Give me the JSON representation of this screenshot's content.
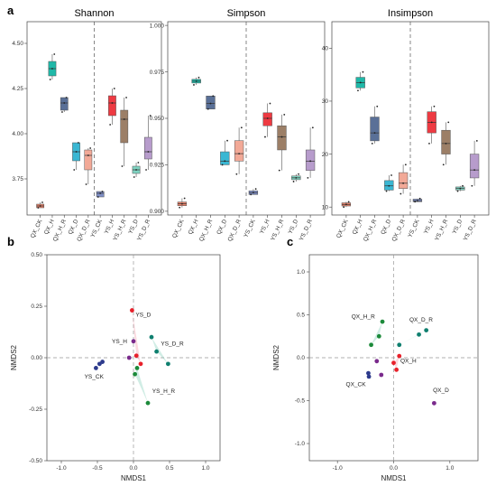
{
  "panel_labels": {
    "a": "a",
    "b": "b",
    "c": "c"
  },
  "chart_data": [
    {
      "type": "box",
      "title": "Shannon",
      "ylim": [
        3.55,
        4.62
      ],
      "yticks": [
        "3.75",
        "4.00",
        "4.25",
        "4.50"
      ],
      "categories": [
        "QX_CK",
        "QX_H",
        "QX_H_R",
        "QX_D",
        "QX_D_R",
        "YS_CK",
        "YS_H",
        "YS_H_R",
        "YS_D",
        "YS_D_R"
      ],
      "colors": [
        "#e8836b",
        "#1fb8a8",
        "#5a7097",
        "#3ab7d3",
        "#f2a997",
        "#7f8fc6",
        "#ee3a42",
        "#9c7f67",
        "#7fd3c1",
        "#b79ccc"
      ],
      "boxes": [
        {
          "q1": 3.59,
          "median": 3.6,
          "q3": 3.61,
          "min": 3.59,
          "max": 3.62
        },
        {
          "q1": 4.32,
          "median": 4.36,
          "q3": 4.4,
          "min": 4.3,
          "max": 4.44
        },
        {
          "q1": 4.13,
          "median": 4.17,
          "q3": 4.2,
          "min": 4.12,
          "max": 4.2
        },
        {
          "q1": 3.85,
          "median": 3.9,
          "q3": 3.95,
          "min": 3.8,
          "max": 3.95
        },
        {
          "q1": 3.8,
          "median": 3.88,
          "q3": 3.91,
          "min": 3.72,
          "max": 3.92
        },
        {
          "q1": 3.65,
          "median": 3.67,
          "q3": 3.68,
          "min": 3.65,
          "max": 3.68
        },
        {
          "q1": 4.1,
          "median": 4.17,
          "q3": 4.21,
          "min": 4.05,
          "max": 4.25
        },
        {
          "q1": 3.95,
          "median": 4.08,
          "q3": 4.13,
          "min": 3.82,
          "max": 4.2
        },
        {
          "q1": 3.78,
          "median": 3.8,
          "q3": 3.82,
          "min": 3.76,
          "max": 3.84
        },
        {
          "q1": 3.86,
          "median": 3.9,
          "q3": 3.98,
          "min": 3.8,
          "max": 4.1
        }
      ]
    },
    {
      "type": "box",
      "title": "Simpson",
      "ylim": [
        0.898,
        1.002
      ],
      "yticks": [
        "0.900",
        "0.925",
        "0.950",
        "0.975",
        "1.000"
      ],
      "categories": [
        "QX_CK",
        "QX_H",
        "QX_H_R",
        "QX_D",
        "QX_D_R",
        "YS_CK",
        "YS_H",
        "YS_H_R",
        "YS_D",
        "YS_D_R"
      ],
      "colors": [
        "#e8836b",
        "#1fb8a8",
        "#5a7097",
        "#3ab7d3",
        "#f2a997",
        "#7f8fc6",
        "#ee3a42",
        "#9c7f67",
        "#7fd3c1",
        "#b79ccc"
      ],
      "boxes": [
        {
          "q1": 0.903,
          "median": 0.904,
          "q3": 0.905,
          "min": 0.902,
          "max": 0.907
        },
        {
          "q1": 0.969,
          "median": 0.97,
          "q3": 0.971,
          "min": 0.968,
          "max": 0.972
        },
        {
          "q1": 0.955,
          "median": 0.958,
          "q3": 0.962,
          "min": 0.955,
          "max": 0.962
        },
        {
          "q1": 0.925,
          "median": 0.927,
          "q3": 0.932,
          "min": 0.925,
          "max": 0.938
        },
        {
          "q1": 0.927,
          "median": 0.931,
          "q3": 0.938,
          "min": 0.92,
          "max": 0.945
        },
        {
          "q1": 0.909,
          "median": 0.91,
          "q3": 0.911,
          "min": 0.909,
          "max": 0.912
        },
        {
          "q1": 0.946,
          "median": 0.95,
          "q3": 0.953,
          "min": 0.94,
          "max": 0.958
        },
        {
          "q1": 0.933,
          "median": 0.94,
          "q3": 0.946,
          "min": 0.922,
          "max": 0.952
        },
        {
          "q1": 0.917,
          "median": 0.918,
          "q3": 0.919,
          "min": 0.916,
          "max": 0.92
        },
        {
          "q1": 0.922,
          "median": 0.927,
          "q3": 0.933,
          "min": 0.918,
          "max": 0.945
        }
      ]
    },
    {
      "type": "box",
      "title": "Insimpson",
      "ylim": [
        8.5,
        45
      ],
      "yticks": [
        "10",
        "20",
        "30",
        "40"
      ],
      "categories": [
        "QX_CK",
        "QX_H",
        "QX_H_R",
        "QX_D",
        "QX_D_R",
        "YS_CK",
        "YS_H",
        "YS_H_R",
        "YS_D",
        "YS_D_R"
      ],
      "colors": [
        "#e8836b",
        "#1fb8a8",
        "#5a7097",
        "#3ab7d3",
        "#f2a997",
        "#7f8fc6",
        "#ee3a42",
        "#9c7f67",
        "#7fd3c1",
        "#b79ccc"
      ],
      "boxes": [
        {
          "q1": 10.2,
          "median": 10.5,
          "q3": 10.8,
          "min": 10,
          "max": 11
        },
        {
          "q1": 32.5,
          "median": 33.5,
          "q3": 34.5,
          "min": 32,
          "max": 35.5
        },
        {
          "q1": 22.5,
          "median": 24,
          "q3": 27,
          "min": 22,
          "max": 29
        },
        {
          "q1": 13.2,
          "median": 14,
          "q3": 15,
          "min": 13,
          "max": 16
        },
        {
          "q1": 13.5,
          "median": 14.5,
          "q3": 16.5,
          "min": 12.5,
          "max": 18
        }
      ],
      "boxes_ys": [
        {
          "q1": 11,
          "median": 11.2,
          "q3": 11.5,
          "min": 11,
          "max": 11.6
        },
        {
          "q1": 24,
          "median": 26,
          "q3": 28,
          "min": 22,
          "max": 29
        },
        {
          "q1": 20,
          "median": 22,
          "q3": 24.5,
          "min": 18,
          "max": 26
        },
        {
          "q1": 13.2,
          "median": 13.5,
          "q3": 13.8,
          "min": 13,
          "max": 14
        },
        {
          "q1": 15.5,
          "median": 17,
          "q3": 20,
          "min": 14,
          "max": 22.5
        }
      ]
    },
    {
      "type": "scatter",
      "xlabel": "NMDS1",
      "ylabel": "NMDS2",
      "xlim": [
        -1.2,
        1.2
      ],
      "ylim": [
        -0.5,
        0.5
      ],
      "xticks": [
        "-1.0",
        "-0.5",
        "0.0",
        "0.5",
        "1.0"
      ],
      "yticks": [
        "0.50",
        "0.25",
        "0.00",
        "-0.25",
        "-0.50"
      ],
      "labels": [
        {
          "text": "YS_D",
          "x": 0.03,
          "y": 0.2
        },
        {
          "text": "YS_H",
          "x": -0.3,
          "y": 0.07
        },
        {
          "text": "YS_D_R",
          "x": 0.38,
          "y": 0.06
        },
        {
          "text": "YS_CK",
          "x": -0.68,
          "y": -0.1
        },
        {
          "text": "YS_H_R",
          "x": 0.26,
          "y": -0.17
        }
      ],
      "points": [
        {
          "x": -0.52,
          "y": -0.05,
          "c": "#2d3a8c"
        },
        {
          "x": -0.47,
          "y": -0.03,
          "c": "#2d3a8c"
        },
        {
          "x": -0.43,
          "y": -0.02,
          "c": "#2d3a8c"
        },
        {
          "x": -0.02,
          "y": 0.23,
          "c": "#e8202a"
        },
        {
          "x": 0.04,
          "y": 0.01,
          "c": "#e8202a"
        },
        {
          "x": 0.1,
          "y": -0.03,
          "c": "#e8202a"
        },
        {
          "x": 0.0,
          "y": 0.08,
          "c": "#7a2a8c"
        },
        {
          "x": -0.06,
          "y": 0.0,
          "c": "#7a2a8c"
        },
        {
          "x": 0.25,
          "y": 0.1,
          "c": "#0f7f6f"
        },
        {
          "x": 0.32,
          "y": 0.03,
          "c": "#0f7f6f"
        },
        {
          "x": 0.48,
          "y": -0.03,
          "c": "#0f7f6f"
        },
        {
          "x": 0.2,
          "y": -0.22,
          "c": "#1c8a3a"
        },
        {
          "x": 0.05,
          "y": -0.05,
          "c": "#1c8a3a"
        },
        {
          "x": 0.02,
          "y": -0.08,
          "c": "#1c8a3a"
        }
      ]
    },
    {
      "type": "scatter",
      "xlabel": "NMDS1",
      "ylabel": "NMDS2",
      "xlim": [
        -1.5,
        1.5
      ],
      "ylim": [
        -1.2,
        1.2
      ],
      "xticks": [
        "-1.0",
        "0.0",
        "1.0"
      ],
      "yticks": [
        "1.0",
        "0.5",
        "0.0",
        "-0.5",
        "-1.0"
      ],
      "labels": [
        {
          "text": "QX_H_R",
          "x": -0.75,
          "y": 0.46
        },
        {
          "text": "QX_D_R",
          "x": 0.28,
          "y": 0.42
        },
        {
          "text": "QX_H",
          "x": 0.12,
          "y": -0.06
        },
        {
          "text": "QX_CK",
          "x": -0.85,
          "y": -0.33
        },
        {
          "text": "QX_D",
          "x": 0.7,
          "y": -0.4
        }
      ],
      "points": [
        {
          "x": -0.45,
          "y": -0.18,
          "c": "#2d3a8c"
        },
        {
          "x": -0.44,
          "y": -0.22,
          "c": "#2d3a8c"
        },
        {
          "x": -0.2,
          "y": 0.42,
          "c": "#1c8a3a"
        },
        {
          "x": -0.26,
          "y": 0.25,
          "c": "#1c8a3a"
        },
        {
          "x": -0.4,
          "y": 0.15,
          "c": "#1c8a3a"
        },
        {
          "x": 0.1,
          "y": 0.15,
          "c": "#0f7f6f"
        },
        {
          "x": 0.45,
          "y": 0.27,
          "c": "#0f7f6f"
        },
        {
          "x": 0.58,
          "y": 0.32,
          "c": "#0f7f6f"
        },
        {
          "x": 0.1,
          "y": 0.02,
          "c": "#e8202a"
        },
        {
          "x": 0.0,
          "y": -0.06,
          "c": "#e8202a"
        },
        {
          "x": 0.05,
          "y": -0.14,
          "c": "#e8202a"
        },
        {
          "x": -0.3,
          "y": -0.04,
          "c": "#7a2a8c"
        },
        {
          "x": -0.22,
          "y": -0.2,
          "c": "#7a2a8c"
        },
        {
          "x": 0.72,
          "y": -0.53,
          "c": "#7a2a8c"
        }
      ]
    }
  ]
}
